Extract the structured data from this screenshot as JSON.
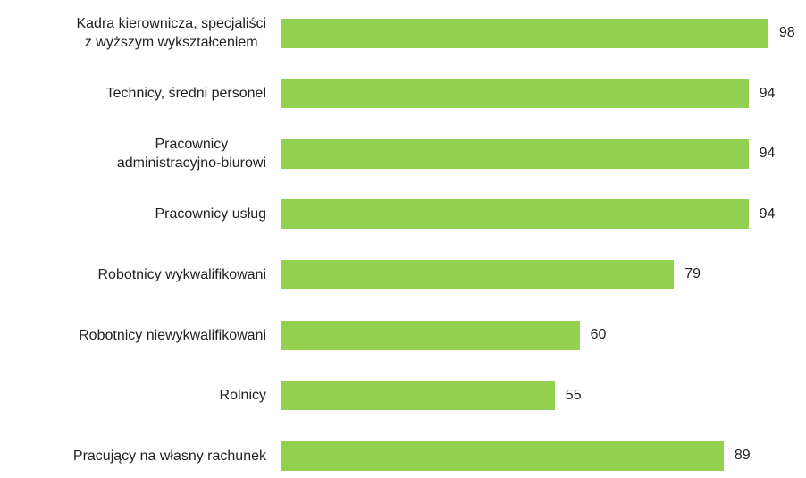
{
  "chart_data": {
    "type": "bar",
    "orientation": "horizontal",
    "categories": [
      "Kadra kierownicza, specjaliści\nz wyższym wykształceniem",
      "Technicy, średni personel",
      "Pracownicy\nadministracyjno-biurowi",
      "Pracownicy usług",
      "Robotnicy wykwalifikowani",
      "Robotnicy niewykwalifikowani",
      "Rolnicy",
      "Pracujący na własny rachunek"
    ],
    "values": [
      98,
      94,
      94,
      94,
      79,
      60,
      55,
      89
    ],
    "color": "#92d050"
  }
}
